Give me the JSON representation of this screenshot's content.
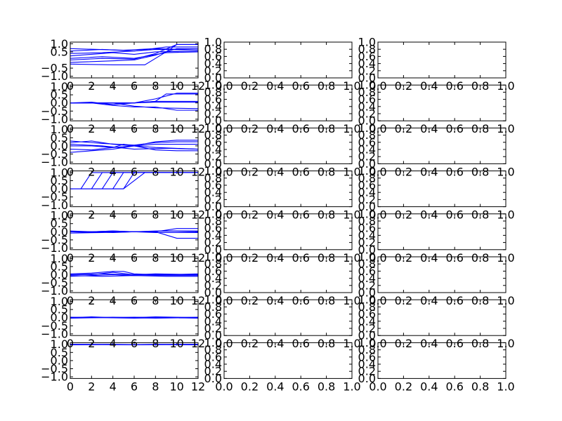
{
  "chart_data": {
    "type": "line",
    "grid": false,
    "layout": {
      "rows": 8,
      "cols": 3
    },
    "line_color": "#0000ff",
    "line_axes_ticks": {
      "xlim": [
        0,
        12
      ],
      "ylim": [
        -1.1,
        1.1
      ],
      "x_ticks": [
        0,
        2,
        4,
        6,
        8,
        10,
        12
      ],
      "x_tick_labels": [
        "0",
        "2",
        "4",
        "6",
        "8",
        "10",
        "12"
      ],
      "y_ticks": [
        1.0,
        0.5,
        0.0,
        -0.5,
        -1.0
      ],
      "y_tick_labels": [
        "1.0",
        "0.5",
        "0.0",
        "−0.5",
        "−1.0"
      ],
      "y_ticks_top": [
        1.0,
        0.5,
        -0.5,
        -1.0
      ],
      "y_tick_labels_top": [
        "1.0",
        "0.5",
        "−0.5",
        "−1.0"
      ]
    },
    "empty_axes_ticks": {
      "xlim": [
        0,
        1
      ],
      "ylim": [
        0,
        1
      ],
      "x_ticks": [
        0,
        0.2,
        0.4,
        0.6,
        0.8,
        1.0
      ],
      "x_tick_labels": [
        "0.0",
        "0.2",
        "0.4",
        "0.6",
        "0.8",
        "1.0"
      ],
      "y_ticks": [
        0,
        0.2,
        0.4,
        0.6,
        0.8,
        1.0
      ],
      "y_tick_labels": [
        "0.0",
        "0.2",
        "0.4",
        "0.6",
        "0.8",
        "1.0"
      ]
    },
    "panels": [
      {
        "row": 0,
        "series": [
          {
            "x": [
              0,
              3,
              6,
              8,
              12
            ],
            "y": [
              0.55,
              0.65,
              0.55,
              0.65,
              0.62
            ]
          },
          {
            "x": [
              0,
              3,
              6,
              9,
              12
            ],
            "y": [
              0.4,
              0.45,
              0.55,
              0.8,
              0.8
            ]
          },
          {
            "x": [
              0,
              2,
              4,
              6,
              8,
              12
            ],
            "y": [
              0.25,
              0.35,
              0.45,
              0.35,
              0.5,
              0.55
            ]
          },
          {
            "x": [
              0,
              3,
              6,
              9,
              12
            ],
            "y": [
              0.1,
              0.2,
              0.1,
              0.45,
              0.5
            ]
          },
          {
            "x": [
              0,
              3,
              6,
              8,
              10,
              12
            ],
            "y": [
              0.0,
              0.1,
              0.05,
              0.4,
              0.95,
              0.95
            ]
          },
          {
            "x": [
              0,
              4,
              6,
              8,
              10,
              12
            ],
            "y": [
              -0.15,
              -0.05,
              0.0,
              0.3,
              0.7,
              0.7
            ]
          },
          {
            "x": [
              0,
              4,
              7,
              9,
              10,
              12
            ],
            "y": [
              -0.25,
              -0.3,
              -0.3,
              0.5,
              0.95,
              0.95
            ]
          },
          {
            "x": [
              0,
              5,
              8,
              12
            ],
            "y": [
              0.7,
              0.6,
              0.7,
              0.62
            ]
          }
        ]
      },
      {
        "row": 1,
        "series": [
          {
            "x": [
              0,
              2,
              4,
              6,
              8,
              12
            ],
            "y": [
              0.0,
              0.05,
              -0.1,
              0.0,
              0.05,
              0.05
            ]
          },
          {
            "x": [
              0,
              2,
              4,
              6,
              8,
              9,
              12
            ],
            "y": [
              0.0,
              0.0,
              0.0,
              0.0,
              0.1,
              0.55,
              0.55
            ]
          },
          {
            "x": [
              0,
              2,
              4,
              6,
              8,
              10,
              12
            ],
            "y": [
              0.0,
              0.0,
              0.0,
              0.0,
              0.25,
              0.6,
              0.6
            ]
          },
          {
            "x": [
              0,
              2,
              4,
              6,
              8,
              12
            ],
            "y": [
              0.0,
              0.0,
              0.0,
              -0.2,
              -0.3,
              -0.35
            ]
          },
          {
            "x": [
              0,
              2,
              4,
              6,
              8,
              10,
              12
            ],
            "y": [
              0.0,
              0.0,
              -0.15,
              -0.25,
              -0.25,
              -0.45,
              -0.45
            ]
          },
          {
            "x": [
              0,
              2,
              4,
              6,
              8,
              12
            ],
            "y": [
              0.0,
              0.0,
              0.0,
              0.0,
              0.1,
              0.1
            ]
          }
        ]
      },
      {
        "row": 2,
        "series": [
          {
            "x": [
              0,
              2,
              4,
              6,
              8,
              10,
              12
            ],
            "y": [
              0.2,
              0.3,
              0.1,
              0.0,
              0.25,
              0.35,
              0.35
            ]
          },
          {
            "x": [
              0,
              2,
              4,
              5,
              6,
              8,
              12
            ],
            "y": [
              0.0,
              0.0,
              -0.1,
              0.1,
              0.0,
              0.1,
              0.1
            ]
          },
          {
            "x": [
              0,
              2,
              4,
              6,
              8,
              12
            ],
            "y": [
              -0.2,
              -0.25,
              -0.1,
              0.0,
              -0.1,
              -0.2
            ]
          },
          {
            "x": [
              0,
              2,
              4,
              6,
              8,
              10,
              12
            ],
            "y": [
              -0.4,
              -0.3,
              -0.2,
              0.0,
              -0.25,
              -0.3,
              -0.3
            ]
          },
          {
            "x": [
              0,
              3,
              6,
              9,
              12
            ],
            "y": [
              0.1,
              0.0,
              -0.2,
              -0.15,
              -0.2
            ]
          },
          {
            "x": [
              0,
              3,
              6,
              8,
              10,
              12
            ],
            "y": [
              0.3,
              0.15,
              0.05,
              0.2,
              0.25,
              0.25
            ]
          }
        ]
      },
      {
        "row": 3,
        "series": [
          {
            "x": [
              0,
              5,
              7,
              12
            ],
            "y": [
              0.0,
              0.0,
              1.0,
              1.0
            ]
          },
          {
            "x": [
              0,
              1,
              2,
              12
            ],
            "y": [
              0.0,
              0.0,
              1.0,
              1.0
            ]
          },
          {
            "x": [
              1,
              2,
              3,
              12
            ],
            "y": [
              0.0,
              0.0,
              1.0,
              1.0
            ]
          },
          {
            "x": [
              2,
              3,
              4,
              12
            ],
            "y": [
              0.0,
              0.0,
              1.0,
              1.0
            ]
          },
          {
            "x": [
              3,
              4,
              5,
              12
            ],
            "y": [
              0.0,
              0.0,
              1.0,
              1.0
            ]
          },
          {
            "x": [
              4,
              5,
              6,
              12
            ],
            "y": [
              0.0,
              0.0,
              1.0,
              1.0
            ]
          }
        ]
      },
      {
        "row": 4,
        "series": [
          {
            "x": [
              0,
              2,
              4,
              6,
              8,
              12
            ],
            "y": [
              0.0,
              -0.05,
              0.0,
              0.0,
              -0.05,
              -0.05
            ]
          },
          {
            "x": [
              0,
              2,
              4,
              6,
              8,
              10,
              12
            ],
            "y": [
              0.0,
              0.0,
              0.05,
              0.0,
              0.0,
              0.2,
              0.2
            ]
          },
          {
            "x": [
              0,
              2,
              4,
              6,
              8,
              10,
              12
            ],
            "y": [
              0.0,
              0.0,
              -0.05,
              0.0,
              0.0,
              -0.4,
              -0.4
            ]
          },
          {
            "x": [
              0,
              2,
              4,
              6,
              8,
              12
            ],
            "y": [
              0.05,
              0.0,
              0.05,
              0.0,
              0.05,
              0.05
            ]
          },
          {
            "x": [
              0,
              3,
              6,
              9,
              12
            ],
            "y": [
              -0.08,
              -0.05,
              0.0,
              0.05,
              0.0
            ]
          }
        ]
      },
      {
        "row": 5,
        "series": [
          {
            "x": [
              0,
              2,
              4,
              6,
              8,
              12
            ],
            "y": [
              0.0,
              0.0,
              0.15,
              0.0,
              0.05,
              0.0
            ]
          },
          {
            "x": [
              0,
              2,
              4,
              5,
              6,
              8,
              12
            ],
            "y": [
              0.05,
              0.1,
              0.2,
              0.2,
              0.05,
              0.0,
              0.0
            ]
          },
          {
            "x": [
              0,
              2,
              4,
              6,
              8,
              12
            ],
            "y": [
              -0.1,
              -0.05,
              0.0,
              -0.05,
              -0.05,
              -0.05
            ]
          },
          {
            "x": [
              0,
              3,
              6,
              9,
              12
            ],
            "y": [
              0.0,
              0.05,
              0.0,
              0.0,
              0.05
            ]
          },
          {
            "x": [
              0,
              3,
              6,
              9,
              12
            ],
            "y": [
              -0.05,
              -0.1,
              -0.05,
              -0.1,
              -0.1
            ]
          }
        ]
      },
      {
        "row": 6,
        "series": [
          {
            "x": [
              0,
              2,
              4,
              6,
              8,
              12
            ],
            "y": [
              0.0,
              0.05,
              0.0,
              0.0,
              0.05,
              0.0
            ]
          },
          {
            "x": [
              0,
              2,
              4,
              6,
              8,
              12
            ],
            "y": [
              0.0,
              0.0,
              0.03,
              0.0,
              -0.03,
              0.0
            ]
          },
          {
            "x": [
              0,
              3,
              6,
              9,
              12
            ],
            "y": [
              0.03,
              0.0,
              -0.03,
              0.0,
              0.03
            ]
          },
          {
            "x": [
              0,
              3,
              6,
              9,
              12
            ],
            "y": [
              -0.03,
              0.0,
              0.03,
              0.0,
              -0.03
            ]
          }
        ]
      },
      {
        "row": 7,
        "series": [
          {
            "x": [
              0,
              2,
              4,
              6,
              8,
              12
            ],
            "y": [
              1.0,
              1.0,
              1.0,
              0.98,
              1.0,
              1.0
            ]
          },
          {
            "x": [
              0,
              3,
              6,
              9,
              12
            ],
            "y": [
              0.97,
              0.98,
              0.97,
              0.98,
              0.97
            ]
          }
        ]
      }
    ]
  }
}
